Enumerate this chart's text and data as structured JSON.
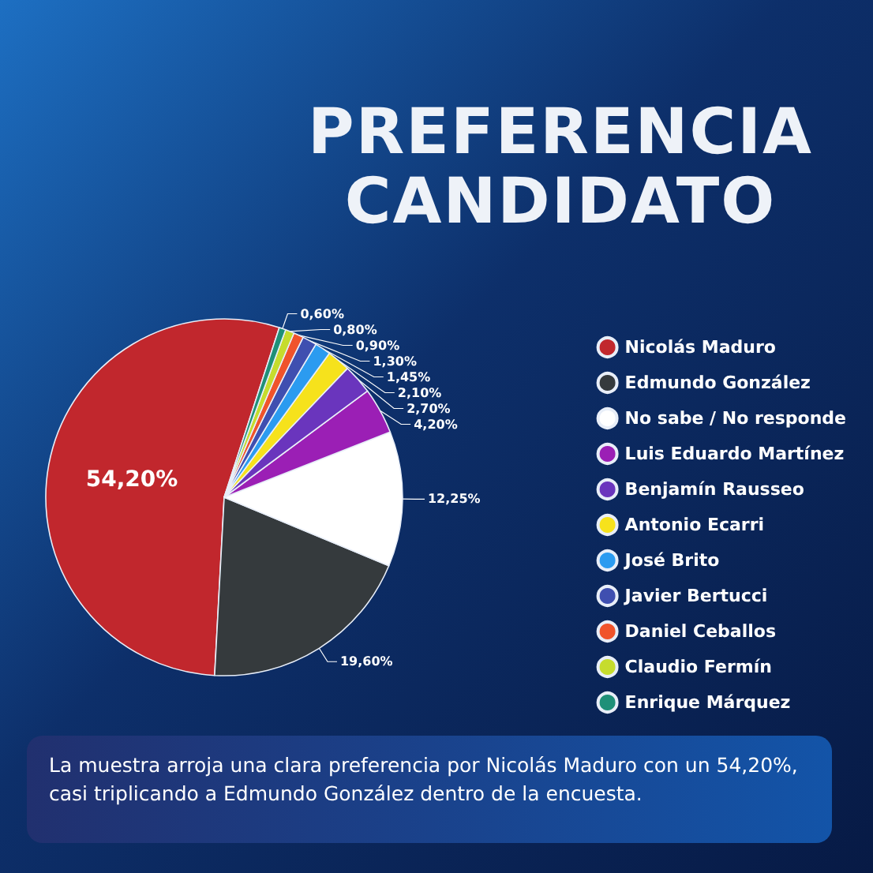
{
  "chart_data": {
    "type": "pie",
    "title": "PREFERENCIA CANDIDATO",
    "categories": [
      "Nicolás Maduro",
      "Edmundo González",
      "No sabe / No responde",
      "Luis Eduardo Martínez",
      "Benjamín Rausseo",
      "Antonio Ecarri",
      "José Brito",
      "Javier Bertucci",
      "Daniel Ceballos",
      "Claudio Fermín",
      "Enrique Márquez"
    ],
    "values": [
      54.2,
      19.6,
      12.25,
      4.2,
      2.7,
      2.1,
      1.45,
      1.3,
      0.9,
      0.8,
      0.6
    ],
    "value_labels": [
      "54,20%",
      "19,60%",
      "12,25%",
      "4,20%",
      "2,70%",
      "2,10%",
      "1,45%",
      "1,30%",
      "0,90%",
      "0,80%",
      "0,60%"
    ],
    "colors": [
      "#c1272d",
      "#353a3d",
      "#ffffff",
      "#9b1fb5",
      "#6a35bd",
      "#f6e21c",
      "#2b9bf0",
      "#3f4fb0",
      "#f0532b",
      "#c6dc2d",
      "#1f9078"
    ],
    "legend": "right",
    "annotations": [
      "La muestra arroja una clara preferencia por Nicolás Maduro con un 54,20%, casi triplicando a Edmundo González dentro de la encuesta."
    ]
  }
}
